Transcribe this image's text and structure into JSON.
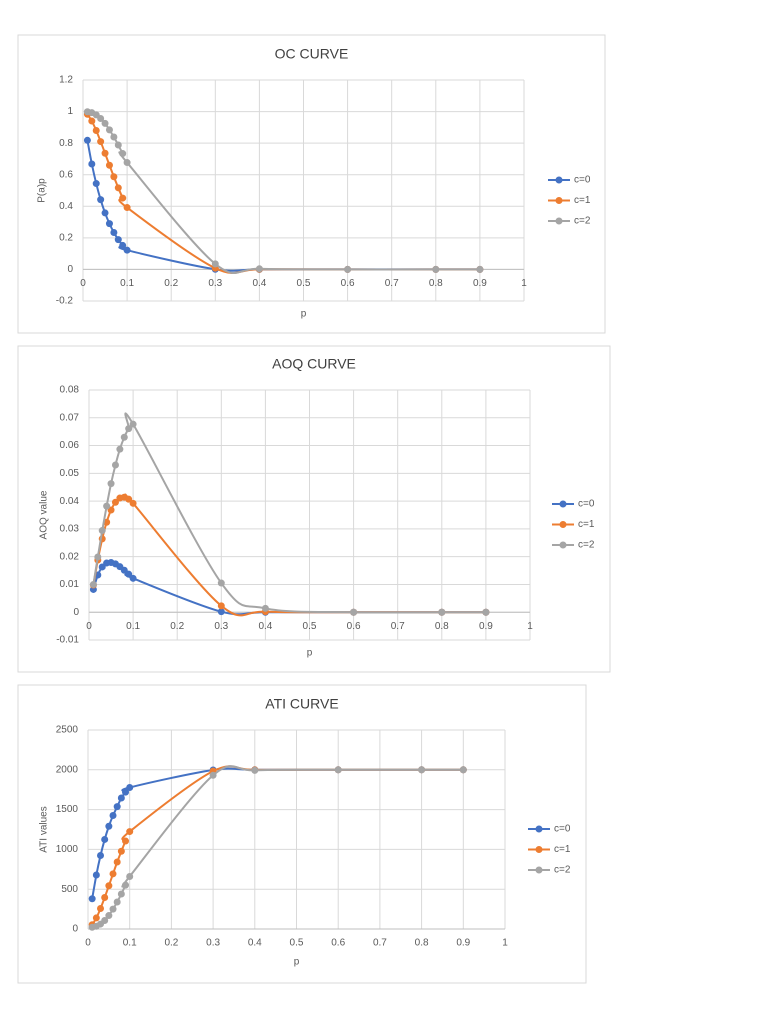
{
  "chart_data": [
    {
      "type": "line",
      "title": "OC CURVE",
      "xlabel": "p",
      "ylabel": "P(a)p",
      "x": [
        0.01,
        0.02,
        0.03,
        0.04,
        0.05,
        0.06,
        0.07,
        0.08,
        0.09,
        0.1,
        0.3,
        0.4,
        0.6,
        0.8,
        0.9
      ],
      "series": [
        {
          "name": "c=0",
          "color": "#4472c4",
          "values": [
            0.818,
            0.668,
            0.544,
            0.442,
            0.358,
            0.29,
            0.234,
            0.189,
            0.152,
            0.122,
            0.001,
            0,
            0,
            0,
            0
          ]
        },
        {
          "name": "c=1",
          "color": "#ed7d31",
          "values": [
            0.983,
            0.94,
            0.88,
            0.81,
            0.736,
            0.66,
            0.587,
            0.517,
            0.452,
            0.392,
            0.008,
            0.001,
            0,
            0,
            0
          ]
        },
        {
          "name": "c=2",
          "color": "#a5a5a5",
          "values": [
            0.999,
            0.993,
            0.979,
            0.956,
            0.925,
            0.884,
            0.839,
            0.788,
            0.734,
            0.677,
            0.035,
            0.004,
            0,
            0,
            0
          ]
        }
      ],
      "xlim": [
        0,
        1
      ],
      "xticks": [
        0,
        0.1,
        0.2,
        0.3,
        0.4,
        0.5,
        0.6,
        0.7,
        0.8,
        0.9,
        1
      ],
      "ylim": [
        -0.2,
        1.2
      ],
      "yticks": [
        -0.2,
        0,
        0.2,
        0.4,
        0.6,
        0.8,
        1,
        1.2
      ],
      "grid": true,
      "legend": "right"
    },
    {
      "type": "line",
      "title": "AOQ CURVE",
      "xlabel": "p",
      "ylabel": "AOQ value",
      "x": [
        0.01,
        0.02,
        0.03,
        0.04,
        0.05,
        0.06,
        0.07,
        0.08,
        0.09,
        0.1,
        0.3,
        0.4,
        0.6,
        0.8,
        0.9
      ],
      "series": [
        {
          "name": "c=0",
          "color": "#4472c4",
          "values": [
            0.0082,
            0.0134,
            0.0163,
            0.0177,
            0.0179,
            0.0174,
            0.0164,
            0.0151,
            0.0137,
            0.0122,
            0.0002,
            0,
            0,
            0,
            0
          ]
        },
        {
          "name": "c=1",
          "color": "#ed7d31",
          "values": [
            0.0098,
            0.0188,
            0.0264,
            0.0324,
            0.0368,
            0.0396,
            0.0411,
            0.0414,
            0.0407,
            0.0392,
            0.0023,
            0.0002,
            0,
            0,
            0
          ]
        },
        {
          "name": "c=2",
          "color": "#a5a5a5",
          "values": [
            0.01,
            0.0199,
            0.0294,
            0.0382,
            0.0463,
            0.053,
            0.0587,
            0.063,
            0.0661,
            0.0677,
            0.0105,
            0.0014,
            0,
            0,
            0
          ]
        }
      ],
      "xlim": [
        0,
        1
      ],
      "xticks": [
        0,
        0.1,
        0.2,
        0.3,
        0.4,
        0.5,
        0.6,
        0.7,
        0.8,
        0.9,
        1
      ],
      "ylim": [
        -0.01,
        0.08
      ],
      "yticks": [
        -0.01,
        0,
        0.01,
        0.02,
        0.03,
        0.04,
        0.05,
        0.06,
        0.07,
        0.08
      ],
      "grid": true,
      "legend": "right"
    },
    {
      "type": "line",
      "title": "ATI CURVE",
      "xlabel": "p",
      "ylabel": "ATI values",
      "x": [
        0.01,
        0.02,
        0.03,
        0.04,
        0.05,
        0.06,
        0.07,
        0.08,
        0.09,
        0.1,
        0.3,
        0.4,
        0.6,
        0.8,
        0.9
      ],
      "series": [
        {
          "name": "c=0",
          "color": "#4472c4",
          "values": [
            380,
            678,
            923,
            1125,
            1291,
            1426,
            1537,
            1646,
            1719,
            1778,
            1998,
            2000,
            2000,
            2000,
            2000
          ]
        },
        {
          "name": "c=1",
          "color": "#ed7d31",
          "values": [
            54,
            139,
            258,
            396,
            543,
            693,
            842,
            977,
            1105,
            1224,
            1983,
            1999,
            2000,
            2000,
            2000
          ]
        },
        {
          "name": "c=2",
          "color": "#a5a5a5",
          "values": [
            22,
            34,
            62,
            107,
            169,
            250,
            339,
            440,
            551,
            660,
            1931,
            1993,
            2000,
            2000,
            2000
          ]
        }
      ],
      "xlim": [
        0,
        1
      ],
      "xticks": [
        0,
        0.1,
        0.2,
        0.3,
        0.4,
        0.5,
        0.6,
        0.7,
        0.8,
        0.9,
        1
      ],
      "ylim": [
        0,
        2500
      ],
      "yticks": [
        0,
        500,
        1000,
        1500,
        2000,
        2500
      ],
      "grid": true,
      "legend": "right"
    }
  ]
}
